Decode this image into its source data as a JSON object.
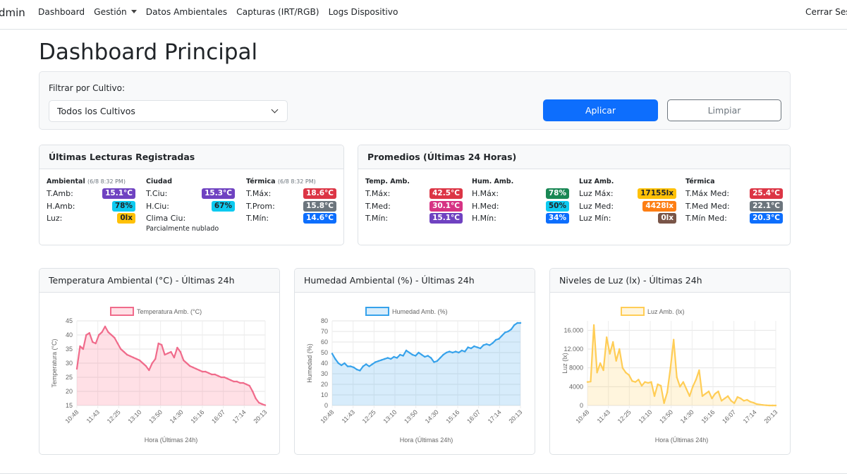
{
  "nav": {
    "brand": "dmin",
    "links": [
      "Dashboard",
      "Gestión",
      "Datos Ambientales",
      "Capturas (IRT/RGB)",
      "Logs Dispositivo"
    ],
    "logout": "Cerrar Ses"
  },
  "page_title": "Dashboard Principal",
  "filter": {
    "label": "Filtrar por Cultivo:",
    "selected": "Todos los Cultivos",
    "apply": "Aplicar",
    "clear": "Limpiar"
  },
  "latest": {
    "title": "Últimas Lecturas Registradas",
    "ambient": {
      "head": "Ambiental",
      "stamp": "(6/8 8:32 PM)",
      "rows": [
        {
          "label": "T.Amb:",
          "value": "15.1°C",
          "color": "#6f42c1"
        },
        {
          "label": "H.Amb:",
          "value": "78%",
          "color": "#0dcaf0"
        },
        {
          "label": "Luz:",
          "value": "0lx",
          "color": "#ffc107"
        }
      ]
    },
    "city": {
      "head": "Ciudad",
      "rows": [
        {
          "label": "T.Ciu:",
          "value": "15.3°C",
          "color": "#6f42c1"
        },
        {
          "label": "H.Ciu:",
          "value": "67%",
          "color": "#0dcaf0"
        }
      ],
      "clima_label": "Clima Ciu:",
      "clima_value": "Parcialmente nublado"
    },
    "thermal": {
      "head": "Térmica",
      "stamp": "(6/8 8:32 PM)",
      "rows": [
        {
          "label": "T.Máx:",
          "value": "18.6°C",
          "color": "#dc3545"
        },
        {
          "label": "T.Prom:",
          "value": "15.8°C",
          "color": "#6c757d"
        },
        {
          "label": "T.Mín:",
          "value": "14.6°C",
          "color": "#0d6efd"
        }
      ]
    }
  },
  "averages": {
    "title": "Promedios (Últimas 24 Horas)",
    "temp": {
      "head": "Temp. Amb.",
      "rows": [
        {
          "label": "T.Máx:",
          "value": "42.5°C",
          "color": "#dc3545"
        },
        {
          "label": "T.Med:",
          "value": "30.1°C",
          "color": "#d63384"
        },
        {
          "label": "T.Mín:",
          "value": "15.1°C",
          "color": "#6f42c1"
        }
      ]
    },
    "hum": {
      "head": "Hum. Amb.",
      "rows": [
        {
          "label": "H.Máx:",
          "value": "78%",
          "color": "#198754"
        },
        {
          "label": "H.Med:",
          "value": "50%",
          "color": "#0dcaf0"
        },
        {
          "label": "H.Mín:",
          "value": "34%",
          "color": "#0d6efd"
        }
      ]
    },
    "light": {
      "head": "Luz Amb.",
      "rows": [
        {
          "label": "Luz Máx:",
          "value": "17155lx",
          "color": "#ffc107"
        },
        {
          "label": "Luz Med:",
          "value": "4428lx",
          "color": "#fd7e14"
        },
        {
          "label": "Luz Mín:",
          "value": "0lx",
          "color": "#795548"
        }
      ]
    },
    "therm": {
      "head": "Térmica",
      "rows": [
        {
          "label": "T.Máx Med:",
          "value": "25.4°C",
          "color": "#dc3545"
        },
        {
          "label": "T.Med Med:",
          "value": "22.1°C",
          "color": "#6c757d"
        },
        {
          "label": "T.Mín Med:",
          "value": "20.3°C",
          "color": "#0d6efd"
        }
      ]
    }
  },
  "chart_data": [
    {
      "type": "line",
      "title": "Temperatura Ambiental (°C) - Últimas 24h",
      "legend": "Temperatura Amb. (°C)",
      "xlabel": "Hora (Últimas 24h)",
      "ylabel": "Temperatura (°C)",
      "ylim": [
        15,
        45
      ],
      "yticks": [
        15,
        20,
        25,
        30,
        35,
        40,
        45
      ],
      "xticks": [
        "10:48",
        "11:43",
        "12:25",
        "13:10",
        "13:50",
        "14:30",
        "15:16",
        "16:07",
        "17:14",
        "20:13"
      ],
      "color": "#f06b8b",
      "fill": "rgba(255,99,132,0.2)",
      "values": [
        28,
        36,
        35,
        40,
        40.7,
        37.5,
        37,
        40,
        41,
        43,
        41,
        40,
        39,
        37,
        35,
        34,
        33,
        32.5,
        32,
        31.5,
        31,
        30,
        29,
        27.5,
        30,
        31.5,
        37,
        36.5,
        33,
        33.5,
        34,
        32,
        35.5,
        34,
        31,
        30,
        29,
        28.5,
        28,
        27.5,
        27,
        27,
        26.5,
        26,
        26,
        25.5,
        25,
        25,
        24.5,
        24,
        23.5,
        23.5,
        23,
        23,
        22.5,
        22,
        20,
        17.5,
        16,
        15.5,
        15.1
      ]
    },
    {
      "type": "line",
      "title": "Humedad Ambiental (%) - Últimas 24h",
      "legend": "Humedad Amb. (%)",
      "xlabel": "Hora (Últimas 24h)",
      "ylabel": "Humedad (%)",
      "ylim": [
        0,
        80
      ],
      "yticks": [
        0,
        10,
        20,
        30,
        40,
        50,
        60,
        70,
        80
      ],
      "xticks": [
        "10:48",
        "11:43",
        "12:25",
        "13:10",
        "13:50",
        "14:30",
        "15:16",
        "16:07",
        "17:14",
        "20:13"
      ],
      "color": "#36a2eb",
      "fill": "rgba(54,162,235,0.2)",
      "values": [
        49,
        44,
        40,
        38,
        40,
        37,
        37,
        36,
        34,
        33,
        37,
        39,
        37,
        39,
        41,
        42,
        43,
        44,
        45,
        44,
        46,
        45,
        48,
        47,
        52,
        50,
        48,
        47,
        50,
        48,
        46,
        47,
        45,
        41,
        42,
        45,
        48,
        50,
        51,
        50,
        51,
        50,
        52,
        51,
        55,
        54,
        56,
        55,
        54,
        57,
        58,
        57,
        59,
        62,
        63,
        66,
        69,
        70,
        72,
        76,
        78,
        78
      ]
    },
    {
      "type": "line",
      "title": "Niveles de Luz (lx) - Últimas 24h",
      "legend": "Luz Amb. (lx)",
      "xlabel": "Hora (Últimas 24h)",
      "ylabel": "Luz (lx)",
      "ylim": [
        0,
        18000
      ],
      "yticks": [
        0,
        4000,
        8000,
        12000,
        16000
      ],
      "ytick_labels": [
        "0",
        "4000",
        "8000",
        "12.000",
        "16.000"
      ],
      "xticks": [
        "10:48",
        "11:43",
        "12:25",
        "13:10",
        "13:50",
        "14:30",
        "15:16",
        "16:07",
        "17:14",
        "20:13"
      ],
      "color": "#ffcd56",
      "fill": "rgba(255,205,86,0.2)",
      "values": [
        5000,
        5100,
        17100,
        7000,
        9000,
        7500,
        14500,
        11000,
        13500,
        9500,
        12000,
        8000,
        7000,
        6500,
        5200,
        5000,
        5500,
        4200,
        5000,
        4800,
        5000,
        2000,
        4500,
        4200,
        500,
        2800,
        8000,
        14000,
        6000,
        4000,
        5000,
        3500,
        2000,
        4000,
        5500,
        7500,
        2000,
        2500,
        3000,
        1500,
        2500,
        3000,
        1000,
        1500,
        2000,
        1000,
        500,
        1800,
        1500,
        1000,
        1200,
        800,
        600,
        300,
        200,
        100,
        50,
        0,
        0,
        0
      ]
    }
  ]
}
